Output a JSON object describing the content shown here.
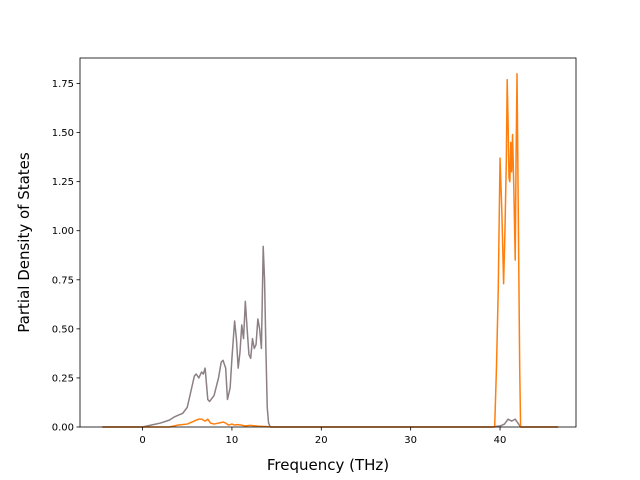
{
  "chart_data": {
    "type": "line",
    "title": "",
    "xlabel": "Frequency (THz)",
    "ylabel": "Partial Density of States",
    "xlim": [
      -7,
      48.5
    ],
    "ylim": [
      0,
      1.88
    ],
    "xticks": [
      0,
      10,
      20,
      30,
      40
    ],
    "yticks": [
      0.0,
      0.25,
      0.5,
      0.75,
      1.0,
      1.25,
      1.5,
      1.75
    ],
    "ytick_labels": [
      "0.00",
      "0.25",
      "0.50",
      "0.75",
      "1.00",
      "1.25",
      "1.50",
      "1.75"
    ],
    "grid": false,
    "legend": "none",
    "series": [
      {
        "color": "#8c7f85",
        "x": [
          -4.5,
          0,
          1,
          2,
          3,
          3.5,
          4,
          4.5,
          5,
          5.5,
          5.8,
          6,
          6.3,
          6.6,
          6.8,
          7,
          7.3,
          7.5,
          8,
          8.5,
          8.8,
          9,
          9.3,
          9.5,
          9.8,
          10,
          10.3,
          10.5,
          10.7,
          10.9,
          11.1,
          11.3,
          11.5,
          11.7,
          11.9,
          12.1,
          12.3,
          12.5,
          12.7,
          12.9,
          13.1,
          13.3,
          13.5,
          13.65,
          13.8,
          13.95,
          14.1,
          14.3,
          14.5,
          20,
          30,
          39,
          40,
          40.5,
          40.9,
          41.3,
          41.7,
          42,
          42.3,
          46.5
        ],
        "y": [
          0,
          0,
          0.01,
          0.02,
          0.035,
          0.05,
          0.06,
          0.07,
          0.1,
          0.2,
          0.26,
          0.27,
          0.25,
          0.28,
          0.27,
          0.3,
          0.14,
          0.13,
          0.16,
          0.25,
          0.33,
          0.34,
          0.3,
          0.14,
          0.2,
          0.35,
          0.54,
          0.45,
          0.3,
          0.38,
          0.52,
          0.45,
          0.64,
          0.5,
          0.37,
          0.35,
          0.45,
          0.4,
          0.42,
          0.55,
          0.5,
          0.4,
          0.92,
          0.75,
          0.4,
          0.1,
          0.02,
          0,
          0,
          0,
          0,
          0,
          0.005,
          0.015,
          0.04,
          0.03,
          0.04,
          0.02,
          0,
          0
        ]
      },
      {
        "color": "#ff7f0e",
        "x": [
          -4.5,
          3,
          3.5,
          4,
          5,
          6,
          6.3,
          6.6,
          7,
          7.3,
          7.6,
          8,
          8.5,
          9,
          9.3,
          9.6,
          10,
          10.3,
          10.6,
          11,
          11.5,
          12,
          13,
          14,
          14.5,
          20,
          30,
          39.4,
          39.6,
          39.8,
          40,
          40.2,
          40.4,
          40.55,
          40.7,
          40.8,
          40.9,
          41.0,
          41.1,
          41.2,
          41.3,
          41.4,
          41.55,
          41.7,
          41.8,
          41.9,
          42.0,
          42.1,
          42.2,
          42.3,
          46.5
        ],
        "y": [
          0,
          0,
          0.005,
          0.01,
          0.015,
          0.035,
          0.04,
          0.04,
          0.03,
          0.04,
          0.02,
          0.015,
          0.02,
          0.025,
          0.02,
          0.01,
          0.015,
          0.01,
          0.012,
          0.01,
          0.005,
          0.008,
          0.004,
          0.002,
          0,
          0,
          0,
          0,
          0.3,
          0.7,
          1.37,
          1.1,
          0.73,
          1.0,
          1.35,
          1.77,
          1.55,
          1.27,
          1.25,
          1.45,
          1.3,
          1.49,
          1.2,
          0.85,
          1.4,
          1.8,
          1.3,
          0.8,
          0.3,
          0,
          0
        ]
      }
    ]
  }
}
